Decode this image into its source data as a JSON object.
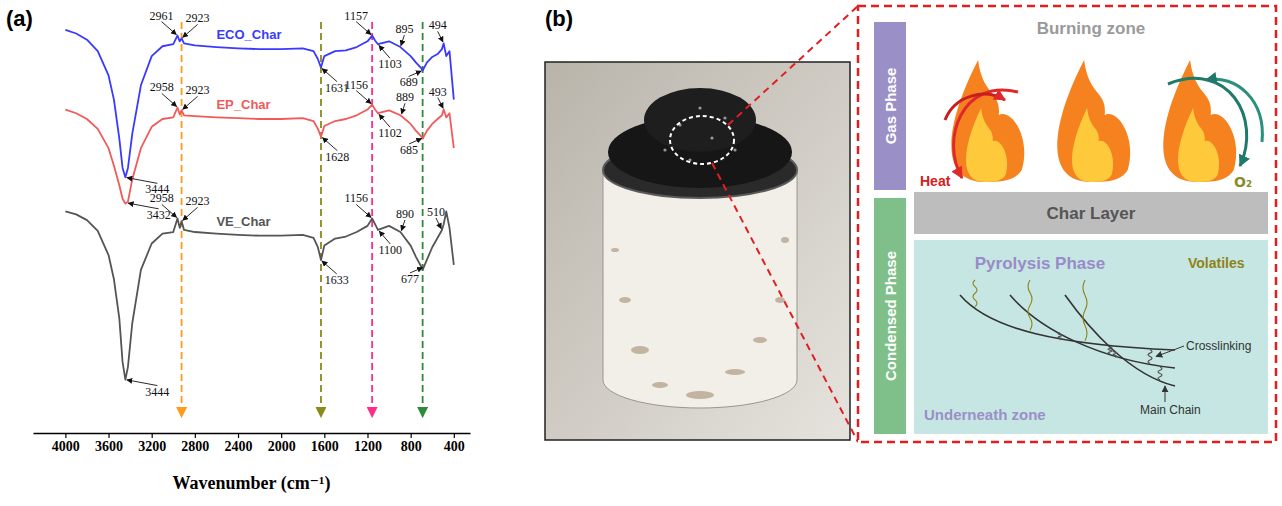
{
  "chart_data": {
    "type": "line",
    "panel_label": "(a)",
    "x_label": "Wavenumber (cm⁻¹)",
    "x": [
      4000,
      3900,
      3800,
      3700,
      3600,
      3550,
      3500,
      3470,
      3444,
      3420,
      3380,
      3300,
      3200,
      3100,
      3000,
      2961,
      2940,
      2923,
      2900,
      2800,
      2600,
      2400,
      2200,
      2000,
      1800,
      1700,
      1660,
      1631,
      1600,
      1500,
      1400,
      1300,
      1200,
      1157,
      1130,
      1103,
      1000,
      895,
      800,
      750,
      700,
      689,
      650,
      600,
      550,
      510,
      494,
      470,
      440,
      400
    ],
    "xlim": [
      4300,
      250
    ],
    "xticks": [
      4000,
      3600,
      3200,
      2800,
      2400,
      2000,
      1600,
      1200,
      800,
      400
    ],
    "ylim": [
      0,
      100
    ],
    "tick_labels": "x",
    "series": [
      {
        "name": "ECO_Char",
        "color": "#3a3aff",
        "values": [
          98.1,
          97.2,
          95.7,
          92.9,
          87.0,
          81.1,
          71.6,
          64.5,
          62.2,
          64.5,
          72.8,
          84.6,
          91.7,
          94.1,
          94.6,
          96.7,
          95.3,
          96.0,
          94.8,
          94.3,
          93.9,
          93.6,
          93.4,
          93.4,
          93.6,
          92.9,
          91.0,
          88.9,
          91.7,
          92.9,
          93.1,
          93.9,
          95.3,
          96.7,
          95.5,
          94.6,
          95.3,
          93.9,
          91.7,
          90.1,
          88.7,
          88.2,
          90.1,
          91.5,
          92.2,
          93.4,
          94.8,
          91.7,
          92.9,
          81.1
        ],
        "annotations": [
          {
            "text": "3444",
            "x": 3444,
            "y": 62.2
          },
          {
            "text": "2961",
            "x": 2961,
            "y": 96.7
          },
          {
            "text": "2923",
            "x": 2923,
            "y": 96.0
          },
          {
            "text": "1631",
            "x": 1631,
            "y": 88.9
          },
          {
            "text": "1157",
            "x": 1157,
            "y": 96.7
          },
          {
            "text": "1103",
            "x": 1103,
            "y": 94.6
          },
          {
            "text": "895",
            "x": 895,
            "y": 93.9
          },
          {
            "text": "689",
            "x": 689,
            "y": 88.2
          },
          {
            "text": "494",
            "x": 494,
            "y": 94.8
          }
        ]
      },
      {
        "name": "EP_Char",
        "color": "#f25a5a",
        "values": [
          78.7,
          77.8,
          76.4,
          74.0,
          69.3,
          65.0,
          60.3,
          57.0,
          55.8,
          56.3,
          61.7,
          69.3,
          74.5,
          76.4,
          76.8,
          79.2,
          77.5,
          78.5,
          77.3,
          77.1,
          76.8,
          76.6,
          76.4,
          76.4,
          76.6,
          75.9,
          74.0,
          72.1,
          74.7,
          75.9,
          76.4,
          77.3,
          78.7,
          79.9,
          78.7,
          77.8,
          78.5,
          77.3,
          75.2,
          73.5,
          72.1,
          71.6,
          73.5,
          75.2,
          76.4,
          77.3,
          78.7,
          76.8,
          77.8,
          69.3
        ],
        "annotations": [
          {
            "text": "3432",
            "x": 3432,
            "y": 56.0
          },
          {
            "text": "2958",
            "x": 2958,
            "y": 79.2
          },
          {
            "text": "2923",
            "x": 2923,
            "y": 78.5
          },
          {
            "text": "1628",
            "x": 1628,
            "y": 72.1
          },
          {
            "text": "1156",
            "x": 1156,
            "y": 79.9
          },
          {
            "text": "1102",
            "x": 1102,
            "y": 77.8
          },
          {
            "text": "889",
            "x": 889,
            "y": 77.3
          },
          {
            "text": "685",
            "x": 685,
            "y": 71.8
          },
          {
            "text": "493",
            "x": 493,
            "y": 78.7
          }
        ]
      },
      {
        "name": "VE_Char",
        "color": "#555555",
        "values": [
          53.9,
          53.2,
          51.8,
          49.2,
          43.3,
          37.4,
          27.9,
          17.3,
          13.0,
          16.1,
          26.7,
          39.7,
          46.1,
          48.5,
          48.9,
          52.2,
          49.9,
          51.5,
          49.4,
          48.9,
          48.5,
          48.2,
          48.0,
          48.0,
          48.2,
          47.5,
          45.2,
          42.1,
          45.6,
          47.3,
          47.8,
          48.9,
          50.4,
          52.2,
          50.8,
          49.4,
          50.4,
          48.9,
          45.6,
          42.8,
          40.4,
          39.7,
          42.1,
          45.2,
          47.5,
          49.4,
          50.8,
          53.9,
          49.9,
          40.9
        ],
        "annotations": [
          {
            "text": "3444",
            "x": 3444,
            "y": 13.0
          },
          {
            "text": "2958",
            "x": 2958,
            "y": 52.2
          },
          {
            "text": "2923",
            "x": 2923,
            "y": 51.5
          },
          {
            "text": "1633",
            "x": 1633,
            "y": 42.1
          },
          {
            "text": "1156",
            "x": 1156,
            "y": 52.2
          },
          {
            "text": "1100",
            "x": 1100,
            "y": 49.4
          },
          {
            "text": "890",
            "x": 890,
            "y": 48.9
          },
          {
            "text": "677",
            "x": 677,
            "y": 40.4
          },
          {
            "text": "510",
            "x": 510,
            "y": 49.4
          }
        ]
      }
    ],
    "reference_lines": [
      {
        "x": 2923,
        "color": "#ff9a1a"
      },
      {
        "x": 1631,
        "color": "#8c8a1a"
      },
      {
        "x": 1157,
        "color": "#ff2d8a"
      },
      {
        "x": 689,
        "color": "#2e8b3a"
      }
    ]
  },
  "panel_b": {
    "panel_label": "(b)",
    "diagram": {
      "burning_zone": "Burning zone",
      "gas_phase": "Gas Phase",
      "heat": "Heat",
      "char_layer": "Char Layer",
      "oxygen": "O₂",
      "condensed_phase": "Condensed Phase",
      "pyrolysis_phase": "Pyrolysis Phase",
      "volatiles": "Volatiles",
      "crosslinking": "Crosslinking",
      "main_chain": "Main Chain",
      "underneath_zone": "Underneath zone"
    }
  }
}
